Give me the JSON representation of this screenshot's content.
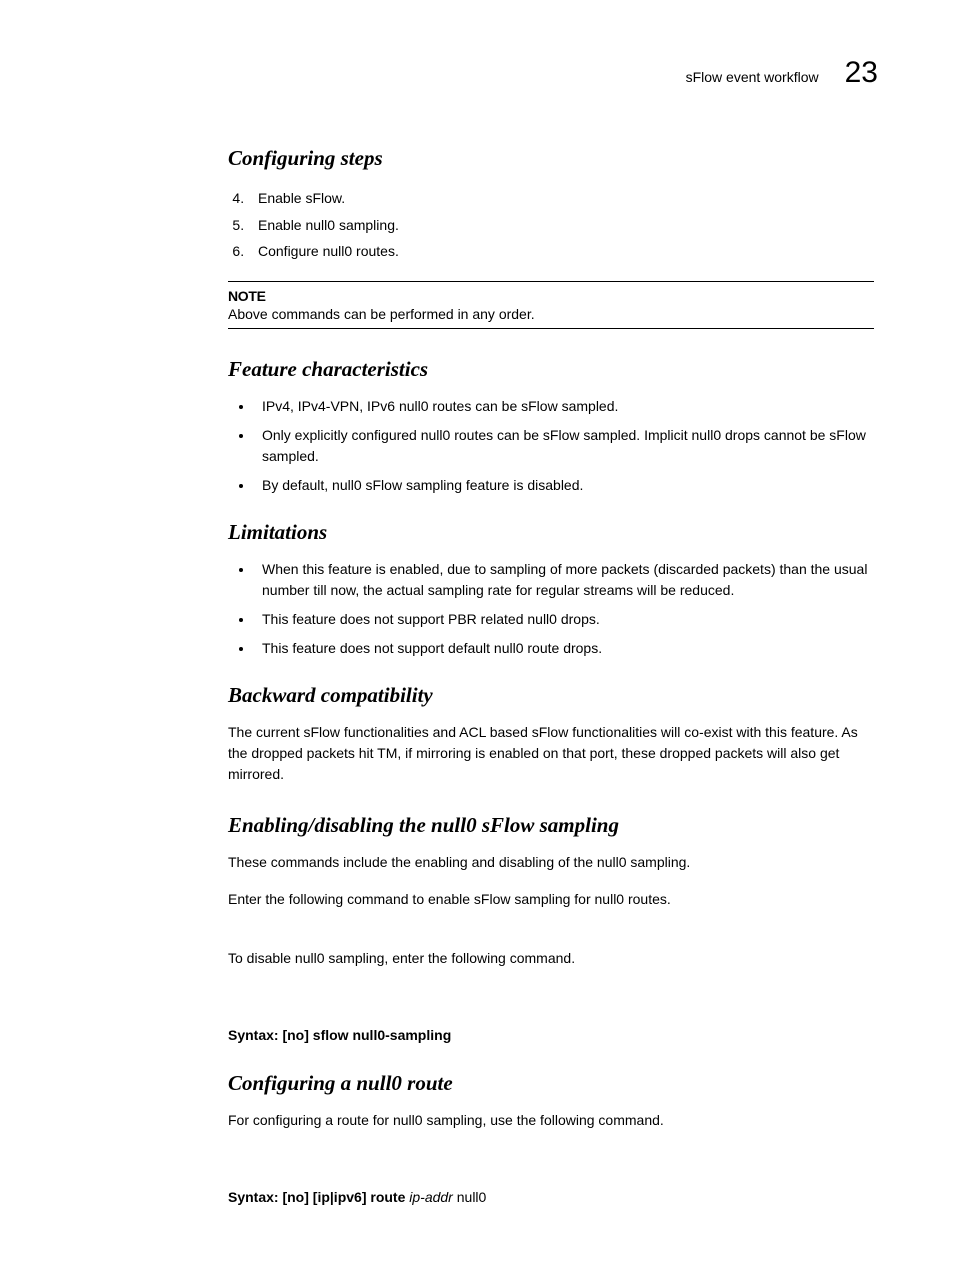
{
  "header": {
    "title": "sFlow event workflow",
    "chapter": "23"
  },
  "sections": {
    "configuring_steps": {
      "heading": "Configuring steps",
      "start": 4,
      "items": [
        "Enable sFlow.",
        "Enable null0 sampling.",
        "Configure null0 routes."
      ],
      "note_label": "NOTE",
      "note_text": "Above commands can be performed in any order."
    },
    "feature_characteristics": {
      "heading": "Feature characteristics",
      "bullets": [
        "IPv4, IPv4-VPN, IPv6 null0 routes can be sFlow sampled.",
        "Only explicitly configured null0 routes can be sFlow sampled. Implicit null0 drops cannot be sFlow sampled.",
        "By default, null0 sFlow sampling feature is disabled."
      ]
    },
    "limitations": {
      "heading": "Limitations",
      "bullets": [
        "When this feature is enabled, due to sampling of more packets (discarded packets) than the usual number till now, the actual sampling rate for regular streams will be reduced.",
        "This feature does not support PBR related null0 drops.",
        "This feature does not support default null0 route drops."
      ]
    },
    "backward_compat": {
      "heading": "Backward compatibility",
      "paragraph": "The current sFlow functionalities and ACL based sFlow functionalities will co-exist with this feature. As the dropped packets hit TM, if mirroring is enabled on that port, these dropped packets will also get mirrored."
    },
    "enabling_disabling": {
      "heading": "Enabling/disabling the null0 sFlow sampling",
      "p1": "These commands include the enabling and disabling of the null0 sampling.",
      "p2": "Enter the following command to enable sFlow sampling for null0 routes.",
      "p3": "To disable null0 sampling, enter the following command.",
      "syntax_label": "Syntax:  ",
      "syntax_cmd": "[no] sflow null0-sampling"
    },
    "configuring_null0": {
      "heading": "Configuring a null0 route",
      "p1": "For configuring a route for null0 sampling, use the following command.",
      "syntax_label": "Syntax:  ",
      "syntax_part1": "[no] [ip|ipv6] route ",
      "syntax_italic": "ip-addr",
      "syntax_part2": " null0"
    }
  }
}
